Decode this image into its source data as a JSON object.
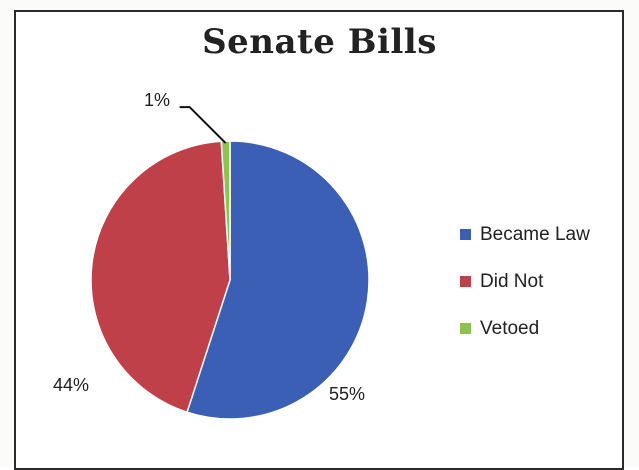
{
  "chart_data": {
    "type": "pie",
    "title": "Senate Bills",
    "slices": [
      {
        "name": "Became Law",
        "value": 55,
        "label": "55%",
        "color": "#3b5fb4"
      },
      {
        "name": "Did Not",
        "value": 44,
        "label": "44%",
        "color": "#c0404a"
      },
      {
        "name": "Vetoed",
        "value": 1,
        "label": "1%",
        "color": "#8dc24d"
      }
    ],
    "legend_position": "right"
  }
}
